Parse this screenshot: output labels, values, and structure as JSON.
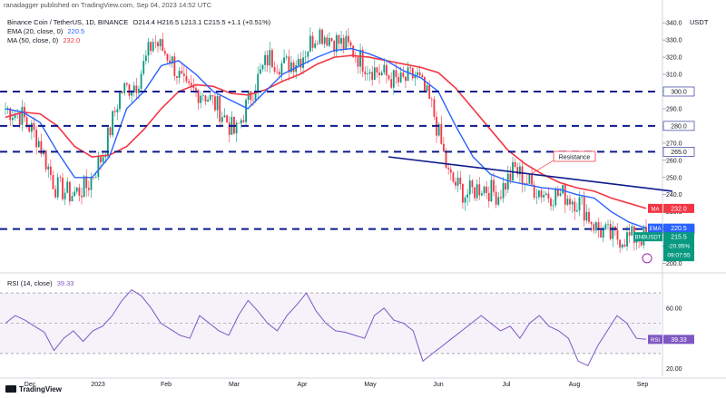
{
  "publisher": "ranadagger published on TradingView.com, Sep 04, 2023 14:52 UTC",
  "header": {
    "title": "Binance Coin / TetherUS, 1D, BINANCE",
    "ohlc": "O214.4 H216.5 L213.1 C215.5 +1.1 (+0.51%)",
    "ema_label": "EMA (20, close, 0)",
    "ema_value": "220.5",
    "ma_label": "MA (50, close, 0)",
    "ma_value": "232.0",
    "rsi_label": "RSI (14, close)",
    "rsi_value": "39.33"
  },
  "currency": "USDT",
  "logo_text": "TradingView",
  "colors": {
    "up": "#089981",
    "down": "#f23645",
    "ema": "#2962ff",
    "ma": "#f23645",
    "rsi": "#7e57c2",
    "level_line": "#0d1a8c",
    "trend_line": "#0d1a8c",
    "resistance_label_border": "#f23645"
  },
  "chart_data": [
    {
      "type": "candlestick",
      "title": "Binance Coin / TetherUS, 1D, BINANCE",
      "x_tick_labels": [
        "Dec",
        "2023",
        "Feb",
        "Mar",
        "Apr",
        "May",
        "Jun",
        "Jul",
        "Aug",
        "Sep"
      ],
      "y_tick_labels": [
        "200.0",
        "210.0",
        "220.0",
        "230.0",
        "240.0",
        "250.0",
        "260.0",
        "270.0",
        "280.0",
        "290.0",
        "300.0",
        "310.0",
        "320.0",
        "330.0",
        "340.0"
      ],
      "ylim": [
        195,
        348
      ],
      "price_series_weekly_closes": [
        {
          "month": "Dec",
          "values": [
            290,
            286,
            272,
            245,
            240
          ]
        },
        {
          "month": "2023",
          "values": [
            245,
            265,
            300,
            305
          ]
        },
        {
          "month": "Feb",
          "values": [
            330,
            320,
            300,
            300
          ]
        },
        {
          "month": "Mar",
          "values": [
            290,
            275,
            300,
            320
          ]
        },
        {
          "month": "Apr",
          "values": [
            315,
            320,
            335,
            330
          ]
        },
        {
          "month": "May",
          "values": [
            325,
            315,
            310,
            305,
            310
          ]
        },
        {
          "month": "Jun",
          "values": [
            290,
            250,
            240,
            245
          ]
        },
        {
          "month": "Jul",
          "values": [
            240,
            255,
            245,
            240
          ]
        },
        {
          "month": "Aug",
          "values": [
            240,
            235,
            220,
            215,
            215
          ]
        }
      ],
      "ema20": [
        290,
        288,
        282,
        265,
        250,
        250,
        262,
        290,
        300,
        315,
        318,
        310,
        300,
        295,
        290,
        300,
        310,
        315,
        320,
        324,
        325,
        322,
        318,
        312,
        308,
        300,
        280,
        262,
        252,
        248,
        246,
        244,
        243,
        240,
        238,
        230,
        224,
        220.5
      ],
      "ma50": [
        285,
        288,
        287,
        280,
        268,
        262,
        263,
        268,
        278,
        290,
        300,
        304,
        303,
        299,
        298,
        301,
        306,
        310,
        316,
        320,
        321,
        320,
        318,
        316,
        314,
        311,
        302,
        290,
        278,
        266,
        258,
        252,
        247,
        244,
        242,
        238,
        235,
        232.0
      ],
      "horizontal_levels": [
        {
          "label": "300.0",
          "value": 300
        },
        {
          "label": "280.0",
          "value": 280
        },
        {
          "label": "265.0",
          "value": 265
        },
        {
          "label": "220.0",
          "value": 220
        }
      ],
      "trend_line": {
        "from": {
          "month": "Jun",
          "value": 262
        },
        "to": {
          "month": "Sep",
          "value": 242
        }
      },
      "annotations": [
        {
          "text": "Resistance"
        }
      ],
      "price_labels": [
        {
          "name": "MA",
          "value": "232.0"
        },
        {
          "name": "EMA",
          "value": "220.5"
        },
        {
          "name": "",
          "value": "220.0"
        },
        {
          "name": "BNBUSDT",
          "value": "215.5",
          "extra": [
            "-20.95%",
            "09:07:55"
          ]
        }
      ]
    },
    {
      "type": "line",
      "title": "RSI (14, close)",
      "y_tick_labels": [
        "20.00",
        "40.00",
        "60.00"
      ],
      "ylim": [
        15,
        82
      ],
      "bands": [
        30,
        70
      ],
      "rsi": [
        50,
        55,
        52,
        48,
        44,
        32,
        40,
        45,
        38,
        45,
        48,
        55,
        65,
        72,
        68,
        60,
        50,
        46,
        42,
        40,
        55,
        50,
        45,
        42,
        55,
        65,
        58,
        50,
        45,
        55,
        62,
        70,
        58,
        50,
        45,
        44,
        42,
        40,
        55,
        60,
        52,
        50,
        45,
        25,
        30,
        35,
        40,
        45,
        50,
        55,
        50,
        45,
        48,
        40,
        50,
        55,
        48,
        45,
        40,
        25,
        22,
        35,
        45,
        55,
        50,
        40,
        39.33
      ],
      "current": "39.33",
      "label": "RSI"
    }
  ]
}
